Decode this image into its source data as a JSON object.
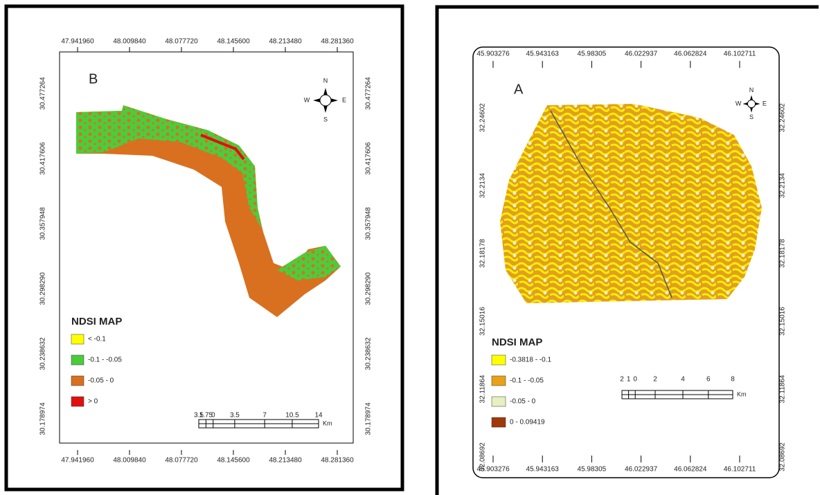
{
  "panels": [
    {
      "letter": "B",
      "lon_ticks": [
        "47.941960",
        "48.009840",
        "48.077720",
        "48.145600",
        "48.213480",
        "48.281360"
      ],
      "lat_ticks": [
        "30.477264",
        "30.417606",
        "30.357948",
        "30.298290",
        "30.238632",
        "30.178974"
      ],
      "compass": {
        "n": "N",
        "e": "E",
        "s": "S",
        "w": "W"
      },
      "legend": {
        "title": "NDSI MAP",
        "items": [
          {
            "label": "< -0.1",
            "color": "#ffff00"
          },
          {
            "label": "-0.1 - -0.05",
            "color": "#4ccc3c"
          },
          {
            "label": "-0.05 - 0",
            "color": "#d9701f"
          },
          {
            "label": "> 0",
            "color": "#e01010"
          }
        ]
      },
      "scale": {
        "labels": [
          "3.5",
          "1.75",
          "0",
          "3.5",
          "7",
          "10.5",
          "14"
        ],
        "unit": "Km"
      }
    },
    {
      "letter": "A",
      "lon_ticks": [
        "45.903276",
        "45.943163",
        "45.98305",
        "46.022937",
        "46.062824",
        "46.102711"
      ],
      "lat_ticks": [
        "32.24602",
        "32.2134",
        "32.18178",
        "32.15016",
        "32.11864",
        "32.08692"
      ],
      "compass": {
        "n": "N",
        "e": "E",
        "s": "S",
        "w": "W"
      },
      "legend": {
        "title": "NDSI MAP",
        "items": [
          {
            "label": "-0.3818 - -0.1",
            "color": "#ffff00"
          },
          {
            "label": "-0.1 - -0.05",
            "color": "#e8a21a"
          },
          {
            "label": "-0.05 - 0",
            "color": "#e6f0c0"
          },
          {
            "label": "0 - 0.09419",
            "color": "#a0380a"
          }
        ]
      },
      "scale": {
        "labels": [
          "2",
          "1",
          "0",
          "2",
          "4",
          "6",
          "8"
        ],
        "unit": "Km"
      }
    }
  ]
}
